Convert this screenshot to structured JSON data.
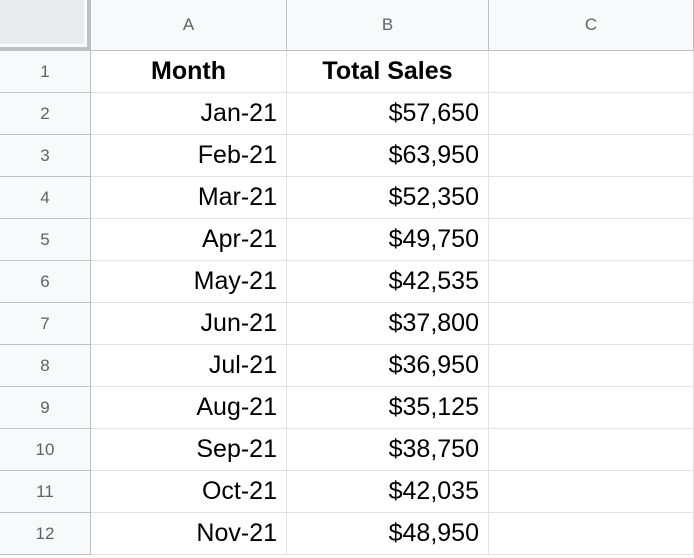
{
  "columns": [
    "A",
    "B",
    "C"
  ],
  "header_row": {
    "row_number": "1",
    "month_label": "Month",
    "sales_label": "Total Sales"
  },
  "rows": [
    {
      "row_number": "2",
      "month": "Jan-21",
      "sales": "$57,650"
    },
    {
      "row_number": "3",
      "month": "Feb-21",
      "sales": "$63,950"
    },
    {
      "row_number": "4",
      "month": "Mar-21",
      "sales": "$52,350"
    },
    {
      "row_number": "5",
      "month": "Apr-21",
      "sales": "$49,750"
    },
    {
      "row_number": "6",
      "month": "May-21",
      "sales": "$42,535"
    },
    {
      "row_number": "7",
      "month": "Jun-21",
      "sales": "$37,800"
    },
    {
      "row_number": "8",
      "month": "Jul-21",
      "sales": "$36,950"
    },
    {
      "row_number": "9",
      "month": "Aug-21",
      "sales": "$35,125"
    },
    {
      "row_number": "10",
      "month": "Sep-21",
      "sales": "$38,750"
    },
    {
      "row_number": "11",
      "month": "Oct-21",
      "sales": "$42,035"
    },
    {
      "row_number": "12",
      "month": "Nov-21",
      "sales": "$48,950"
    }
  ],
  "colors": {
    "header_bg": "#f8f9fa",
    "header_text": "#5f6368",
    "gridline": "#e2e2e2",
    "header_border": "#c0c0c0",
    "corner_fill": "#e8eaed"
  }
}
